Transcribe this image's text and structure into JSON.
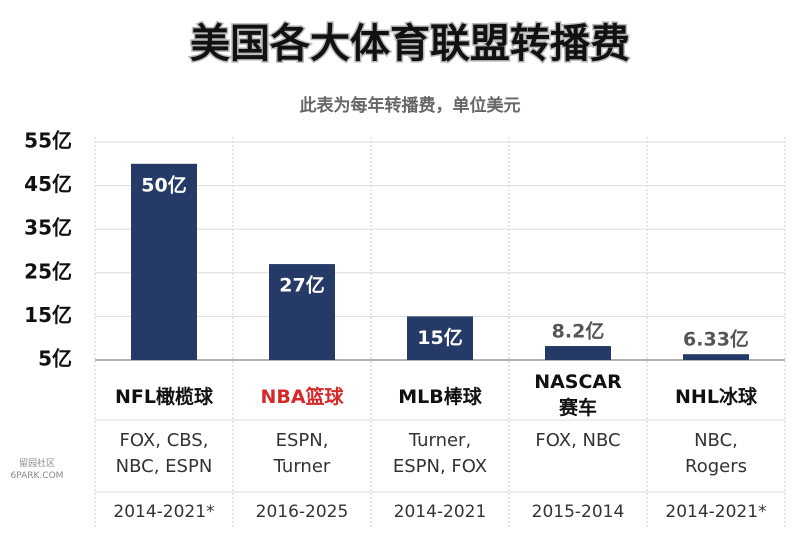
{
  "chart_data": {
    "type": "bar",
    "title": "美国各大体育联盟转播费",
    "subtitle": "此表为每年转播费，单位美元",
    "categories": [
      "NFL橄榄球",
      "NBA篮球",
      "MLB棒球",
      "NASCAR\n赛车",
      "NHL冰球"
    ],
    "category_colors": [
      "#111111",
      "#d62828",
      "#111111",
      "#111111",
      "#111111"
    ],
    "broadcasters": [
      "FOX, CBS, NBC, ESPN",
      "ESPN, Turner",
      "Turner, ESPN, FOX",
      "FOX, NBC",
      "NBC, Rogers"
    ],
    "years": [
      "2014-2021*",
      "2016-2025",
      "2014-2021",
      "2015-2014",
      "2014-2021*"
    ],
    "values": [
      50,
      27,
      15,
      8.2,
      6.33
    ],
    "value_labels": [
      "50亿",
      "27亿",
      "15亿",
      "8.2亿",
      "6.33亿"
    ],
    "color": "#253a66",
    "ylim": [
      5,
      55
    ],
    "yticks": [
      {
        "value": 5,
        "label": "5亿"
      },
      {
        "value": 15,
        "label": "15亿"
      },
      {
        "value": 25,
        "label": "25亿"
      },
      {
        "value": 35,
        "label": "35亿"
      },
      {
        "value": 45,
        "label": "45亿"
      },
      {
        "value": 55,
        "label": "55亿"
      }
    ],
    "grid": true,
    "watermark": "留园社区 6PARK.COM"
  }
}
